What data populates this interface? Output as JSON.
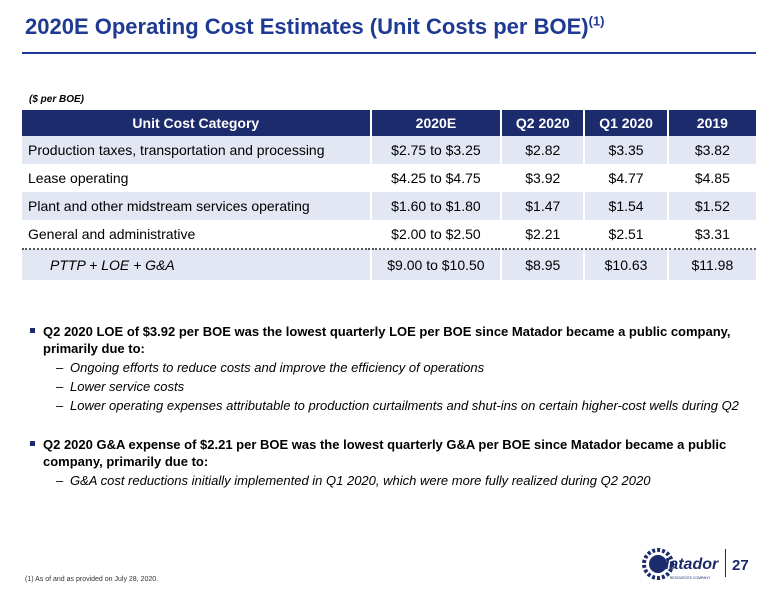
{
  "title": {
    "text": "2020E Operating Cost Estimates (Unit Costs per BOE)",
    "footnote_ref": "(1)"
  },
  "unit_note": "($ per BOE)",
  "table": {
    "headers": [
      "Unit Cost Category",
      "2020E",
      "Q2 2020",
      "Q1 2020",
      "2019"
    ],
    "rows": [
      [
        "Production taxes, transportation and processing",
        "$2.75 to $3.25",
        "$2.82",
        "$3.35",
        "$3.82"
      ],
      [
        "Lease operating",
        "$4.25 to $4.75",
        "$3.92",
        "$4.77",
        "$4.85"
      ],
      [
        "Plant and other midstream services operating",
        "$1.60 to $1.80",
        "$1.47",
        "$1.54",
        "$1.52"
      ],
      [
        "General and administrative",
        "$2.00 to $2.50",
        "$2.21",
        "$2.51",
        "$3.31"
      ]
    ],
    "total": [
      "PTTP + LOE + G&A",
      "$9.00 to $10.50",
      "$8.95",
      "$10.63",
      "$11.98"
    ]
  },
  "bullets": [
    {
      "text": "Q2 2020 LOE of $3.92 per BOE was the lowest quarterly LOE per BOE since Matador became a public company, primarily due to:",
      "subs": [
        "Ongoing efforts to reduce costs and improve the efficiency of operations",
        "Lower service costs",
        "Lower operating expenses attributable to production curtailments and shut-ins on certain higher-cost wells during Q2"
      ]
    },
    {
      "text": "Q2 2020 G&A expense of $2.21 per BOE was the lowest quarterly G&A per BOE since Matador became a public company, primarily due to:",
      "subs": [
        "G&A cost reductions initially implemented in Q1 2020, which were more fully realized during Q2 2020"
      ]
    }
  ],
  "dash_glyph": "–",
  "footnote": "(1)  As of and as provided on July 28, 2020.",
  "logo": {
    "name": "Matador",
    "tagline": "RESOURCES COMPANY"
  },
  "page_number": "27",
  "colors": {
    "brand_navy": "#1c2b6b",
    "title_blue": "#1f3a93",
    "row_shade": "#e2e7f3"
  }
}
